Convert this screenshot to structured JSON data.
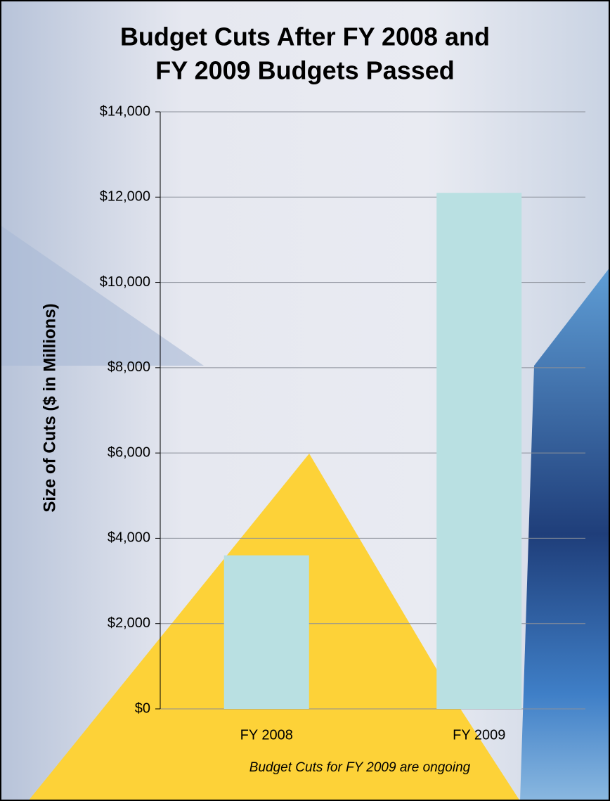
{
  "chart_data": {
    "type": "bar",
    "title": [
      "Budget Cuts After FY 2008 and",
      "FY 2009 Budgets Passed"
    ],
    "y_label": "Size of Cuts ($ in Millions)",
    "annotation": "Budget Cuts for FY 2009 are ongoing",
    "categories": [
      "FY 2008",
      "FY 2009"
    ],
    "values": [
      3600,
      12100
    ],
    "color": "#b9e0e2",
    "ylim": [
      0,
      14000
    ],
    "yticks": [
      {
        "value": 0,
        "label": "$0"
      },
      {
        "value": 2000,
        "label": "$2,000"
      },
      {
        "value": 4000,
        "label": "$4,000"
      },
      {
        "value": 6000,
        "label": "$6,000"
      },
      {
        "value": 8000,
        "label": "$8,000"
      },
      {
        "value": 10000,
        "label": "$10,000"
      },
      {
        "value": 12000,
        "label": "$12,000"
      },
      {
        "value": 14000,
        "label": "$14,000"
      }
    ],
    "grid": true
  }
}
